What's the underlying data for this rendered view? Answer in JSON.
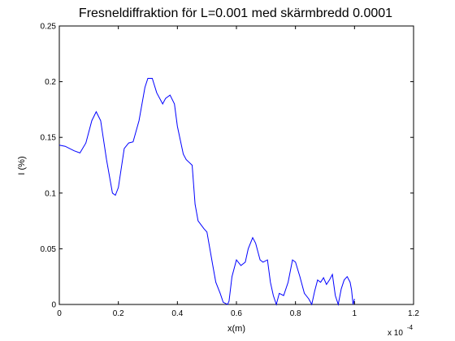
{
  "chart_data": {
    "type": "line",
    "title": "Fresneldiffraktion för L=0.001 med skärmbredd 0.0001",
    "xlabel": "x(m)",
    "ylabel": "I (%)",
    "x_scale_label": "x 10",
    "x_scale_exponent": "-4",
    "xlim": [
      0,
      1.2
    ],
    "ylim": [
      0,
      0.25
    ],
    "x_ticks": [
      0,
      0.2,
      0.4,
      0.6,
      0.8,
      1,
      1.2
    ],
    "x_tick_labels": [
      "0",
      "0.2",
      "0.4",
      "0.6",
      "0.8",
      "1",
      "1.2"
    ],
    "y_ticks": [
      0,
      0.05,
      0.1,
      0.15,
      0.2,
      0.25
    ],
    "y_tick_labels": [
      "0",
      "0.05",
      "0.1",
      "0.15",
      "0.2",
      "0.25"
    ],
    "grid": false,
    "line_color": "#0000ff",
    "series": [
      {
        "x": [
          0,
          0.02,
          0.05,
          0.07,
          0.09,
          0.11,
          0.125,
          0.14,
          0.16,
          0.18,
          0.19,
          0.2,
          0.22,
          0.235,
          0.25,
          0.27,
          0.29,
          0.3,
          0.315,
          0.33,
          0.35,
          0.36,
          0.375,
          0.39,
          0.4,
          0.42,
          0.43,
          0.45,
          0.46,
          0.47,
          0.49,
          0.5,
          0.52,
          0.53,
          0.545,
          0.555,
          0.57,
          0.575,
          0.585,
          0.6,
          0.615,
          0.63,
          0.64,
          0.655,
          0.665,
          0.68,
          0.69,
          0.705,
          0.715,
          0.725,
          0.735,
          0.745,
          0.76,
          0.775,
          0.79,
          0.8,
          0.815,
          0.83,
          0.845,
          0.855,
          0.865,
          0.875,
          0.885,
          0.895,
          0.905,
          0.915,
          0.925,
          0.935,
          0.945,
          0.955,
          0.965,
          0.975,
          0.985,
          0.99,
          0.995,
          1.0
        ],
        "y": [
          0.143,
          0.142,
          0.138,
          0.136,
          0.145,
          0.165,
          0.173,
          0.165,
          0.13,
          0.1,
          0.098,
          0.105,
          0.14,
          0.145,
          0.146,
          0.165,
          0.195,
          0.203,
          0.203,
          0.19,
          0.18,
          0.185,
          0.188,
          0.18,
          0.16,
          0.135,
          0.13,
          0.125,
          0.09,
          0.075,
          0.068,
          0.065,
          0.035,
          0.02,
          0.01,
          0.002,
          0.0,
          0.003,
          0.025,
          0.04,
          0.035,
          0.038,
          0.05,
          0.06,
          0.055,
          0.04,
          0.038,
          0.04,
          0.02,
          0.008,
          0.0,
          0.01,
          0.008,
          0.02,
          0.04,
          0.038,
          0.025,
          0.01,
          0.005,
          0.0,
          0.012,
          0.022,
          0.02,
          0.024,
          0.018,
          0.022,
          0.027,
          0.008,
          0.0,
          0.014,
          0.022,
          0.025,
          0.02,
          0.013,
          0.0,
          0.005
        ]
      }
    ]
  }
}
